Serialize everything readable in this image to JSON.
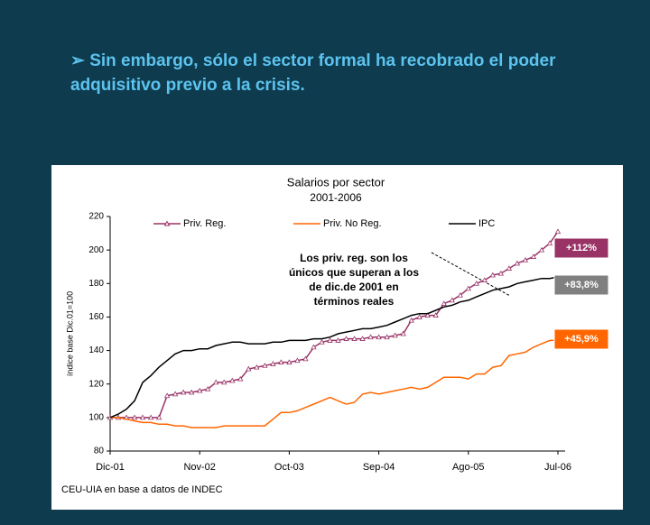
{
  "heading": "➢ Sin embargo, sólo el sector formal ha recobrado el poder adquisitivo previo a la crisis.",
  "chart_data": {
    "type": "line",
    "title": "Salarios por sector",
    "subtitle": "2001-2006",
    "y_label": "índice base Dic.01=100",
    "source": "CEU-UIA en base a datos de INDEC",
    "annotation": [
      "Los priv. reg. son los",
      "únicos que superan a los",
      "de dic.de 2001 en",
      "términos reales"
    ],
    "categories": [
      "Dic-01",
      null,
      null,
      null,
      null,
      null,
      null,
      null,
      null,
      null,
      null,
      "Nov-02",
      null,
      null,
      null,
      null,
      null,
      null,
      null,
      null,
      null,
      null,
      "Oct-03",
      null,
      null,
      null,
      null,
      null,
      null,
      null,
      null,
      null,
      null,
      "Sep-04",
      null,
      null,
      null,
      null,
      null,
      null,
      null,
      null,
      null,
      null,
      "Ago-05",
      null,
      null,
      null,
      null,
      null,
      null,
      null,
      null,
      null,
      null,
      "Jul-06"
    ],
    "ylim": [
      80,
      220
    ],
    "yticks": [
      80,
      100,
      120,
      140,
      160,
      180,
      200,
      220
    ],
    "series": [
      {
        "name": "Priv. Reg.",
        "color": "#993366",
        "marker": "triangle",
        "label": "+112%",
        "label_color": "#993366",
        "values": [
          100,
          100,
          100,
          100,
          100,
          100,
          100,
          113,
          114,
          115,
          115,
          116,
          117,
          121,
          121,
          122,
          123,
          129,
          130,
          131,
          132,
          133,
          133,
          134,
          135,
          142,
          145,
          146,
          146,
          147,
          147,
          147,
          148,
          148,
          148,
          149,
          150,
          158,
          160,
          161,
          161,
          168,
          170,
          173,
          177,
          180,
          182,
          185,
          186,
          189,
          192,
          194,
          196,
          200,
          204,
          211
        ]
      },
      {
        "name": "Priv. No Reg.",
        "color": "#ff6600",
        "label": "+45,9%",
        "label_color": "#ff6600",
        "values": [
          100,
          100,
          99,
          98,
          97,
          97,
          96,
          96,
          95,
          95,
          94,
          94,
          94,
          94,
          95,
          95,
          95,
          95,
          95,
          95,
          99,
          103,
          103,
          104,
          106,
          108,
          110,
          112,
          110,
          108,
          109,
          114,
          115,
          114,
          115,
          116,
          117,
          118,
          117,
          118,
          121,
          124,
          124,
          124,
          123,
          126,
          126,
          130,
          131,
          137,
          138,
          139,
          142,
          144,
          146,
          146
        ]
      },
      {
        "name": "IPC",
        "color": "#000000",
        "label": "+83,8%",
        "label_color": "#808080",
        "values": [
          100,
          102,
          105,
          110,
          121,
          125,
          130,
          134,
          138,
          140,
          140,
          141,
          141,
          143,
          144,
          145,
          145,
          144,
          144,
          144,
          145,
          145,
          146,
          146,
          146,
          147,
          147,
          148,
          150,
          151,
          152,
          153,
          153,
          154,
          155,
          157,
          159,
          161,
          162,
          162,
          164,
          166,
          167,
          169,
          170,
          172,
          174,
          176,
          177,
          178,
          180,
          181,
          182,
          183,
          183,
          184
        ]
      }
    ]
  }
}
